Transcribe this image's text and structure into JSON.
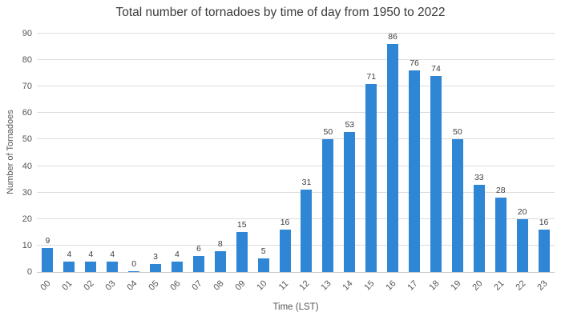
{
  "chart_data": {
    "type": "bar",
    "title": "Total number of tornadoes by time of day from 1950 to 2022",
    "xlabel": "Time (LST)",
    "ylabel": "Number of Tornadoes",
    "categories": [
      "00",
      "01",
      "02",
      "03",
      "04",
      "05",
      "06",
      "07",
      "08",
      "09",
      "10",
      "11",
      "12",
      "13",
      "14",
      "15",
      "16",
      "17",
      "18",
      "19",
      "20",
      "21",
      "22",
      "23"
    ],
    "values": [
      9,
      4,
      4,
      4,
      0,
      3,
      4,
      6,
      8,
      15,
      5,
      16,
      31,
      50,
      53,
      71,
      86,
      76,
      74,
      50,
      33,
      28,
      20,
      16
    ],
    "ylim": [
      0,
      90
    ],
    "ytick_step": 10,
    "grid": true,
    "legend": "none",
    "bar_color": "#2f86d5",
    "grid_color": "#dcdcdc",
    "label_color": "#3f3f3f"
  }
}
